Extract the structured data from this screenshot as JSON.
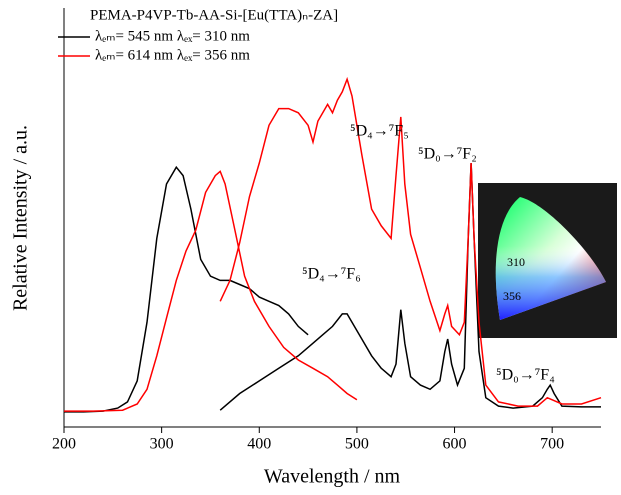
{
  "chart_data": {
    "type": "line",
    "title": "PEMA-P4VP-Tb-AA-Si-[Eu(TTA)ₙ-ZA]",
    "x_label": "Wavelength / nm",
    "y_label": "Relative Intensity / a.u.",
    "xlim": [
      200,
      750
    ],
    "xticks": [
      200,
      300,
      400,
      500,
      600,
      700
    ],
    "ylim": [
      0,
      100
    ],
    "series": [
      {
        "name": "λₑₘ= 545 nm  λₑₓ= 310 nm",
        "color": "#000000",
        "x": [
          200,
          220,
          240,
          255,
          265,
          275,
          285,
          295,
          305,
          315,
          322,
          330,
          340,
          350,
          360,
          370,
          380,
          390,
          400,
          410,
          420,
          430,
          440,
          450
        ],
        "values": [
          3.6,
          3.6,
          3.8,
          4.5,
          6,
          11,
          25,
          45,
          58,
          62,
          60,
          52,
          40,
          36,
          35,
          35,
          34,
          33,
          31,
          30,
          29,
          27,
          24,
          22
        ]
      },
      {
        "color": "#000000",
        "x": [
          360,
          380,
          400,
          420,
          440,
          455,
          465,
          475,
          485,
          490,
          495,
          505,
          515,
          525,
          535,
          540,
          545,
          549,
          555,
          565,
          575,
          585,
          590,
          593,
          597,
          603,
          610,
          614,
          617,
          620,
          625,
          632,
          645,
          660,
          680,
          690,
          695,
          698,
          702,
          710,
          730,
          750
        ],
        "values": [
          4,
          8,
          11,
          14,
          17,
          20,
          22,
          24,
          27,
          27,
          25,
          21,
          17,
          14,
          12,
          15,
          28,
          20,
          12,
          10,
          9,
          11,
          18,
          21,
          15,
          10,
          14,
          45,
          63,
          45,
          18,
          7,
          5,
          4.5,
          5,
          7,
          9,
          10,
          8,
          5,
          4.8,
          4.8
        ]
      },
      {
        "name": "λₑₘ= 614 nm  λₑₓ= 356 nm",
        "color": "#ff0000",
        "x": [
          200,
          230,
          260,
          275,
          285,
          295,
          305,
          315,
          325,
          335,
          345,
          355,
          360,
          365,
          375,
          385,
          395,
          410,
          425,
          440,
          455,
          470,
          480,
          490,
          500
        ],
        "values": [
          3.8,
          3.8,
          4,
          5.5,
          9,
          17,
          26,
          35,
          42,
          47,
          56,
          60,
          61,
          58,
          47,
          36,
          30,
          24,
          19,
          16,
          14,
          12,
          10,
          8,
          6.5
        ]
      },
      {
        "color": "#ff0000",
        "x": [
          360,
          370,
          380,
          390,
          400,
          410,
          420,
          430,
          440,
          450,
          455,
          460,
          470,
          475,
          480,
          485,
          490,
          495,
          505,
          515,
          525,
          535,
          540,
          545,
          549,
          555,
          565,
          575,
          585,
          590,
          593,
          597,
          605,
          610,
          614,
          617,
          620,
          625,
          632,
          645,
          665,
          685,
          695,
          700,
          710,
          730,
          750
        ],
        "values": [
          30,
          35,
          44,
          55,
          63,
          72,
          76,
          76,
          75,
          72,
          68,
          73,
          77,
          75,
          78,
          80,
          83,
          79,
          65,
          52,
          48,
          45,
          60,
          74,
          58,
          46,
          38,
          30,
          23,
          27,
          29,
          24,
          22,
          25,
          45,
          63,
          45,
          25,
          10,
          6,
          5,
          5,
          7,
          6.5,
          5.5,
          5.5,
          7
        ]
      }
    ],
    "annotations": [
      "⁵D₄→⁷F₅",
      "⁵D₀→⁷F₂",
      "⁵D₄→⁷F₆",
      "⁵D₀→⁷F₄"
    ],
    "inset": {
      "labels": [
        "310",
        "356"
      ]
    }
  }
}
